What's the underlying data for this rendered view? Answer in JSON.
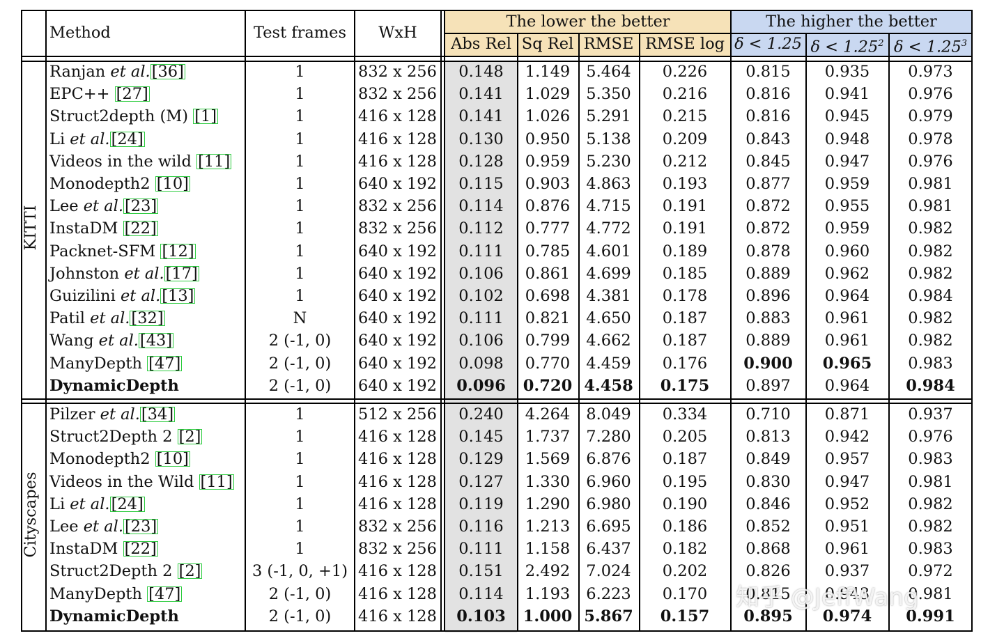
{
  "header": {
    "method": "Method",
    "test_frames": "Test frames",
    "wxh": "WxH",
    "group_lower": "The lower the better",
    "group_higher": "The higher the better",
    "abs_rel": "Abs Rel",
    "sq_rel": "Sq Rel",
    "rmse": "RMSE",
    "rmse_log": "RMSE log",
    "d1": "δ < 1.25",
    "d2": "δ < 1.25",
    "d3": "δ < 1.25",
    "d2_exp": "2",
    "d3_exp": "3"
  },
  "colors": {
    "lower_bg": "#f6e2b8",
    "higher_bg": "#c9d8f1",
    "absrel_bg": "#e2e2e2",
    "cite_border": "#2ecc40"
  },
  "sections": [
    {
      "name": "KITTI",
      "rows": [
        {
          "m": "Ranjan",
          "it": "et al.",
          "cite": "[36]",
          "f": "1",
          "wh": "832 x 256",
          "v": [
            "0.148",
            "1.149",
            "5.464",
            "0.226",
            "0.815",
            "0.935",
            "0.973"
          ]
        },
        {
          "m": "EPC++",
          "it": "",
          "cite": "[27]",
          "f": "1",
          "wh": "832 x 256",
          "v": [
            "0.141",
            "1.029",
            "5.350",
            "0.216",
            "0.816",
            "0.941",
            "0.976"
          ]
        },
        {
          "m": "Struct2depth (M)",
          "it": "",
          "cite": "[1]",
          "f": "1",
          "wh": "416 x 128",
          "v": [
            "0.141",
            "1.026",
            "5.291",
            "0.215",
            "0.816",
            "0.945",
            "0.979"
          ]
        },
        {
          "m": "Li",
          "it": "et al.",
          "cite": "[24]",
          "f": "1",
          "wh": "416 x 128",
          "v": [
            "0.130",
            "0.950",
            "5.138",
            "0.209",
            "0.843",
            "0.948",
            "0.978"
          ]
        },
        {
          "m": "Videos in the wild",
          "it": "",
          "cite": "[11]",
          "f": "1",
          "wh": "416 x 128",
          "v": [
            "0.128",
            "0.959",
            "5.230",
            "0.212",
            "0.845",
            "0.947",
            "0.976"
          ]
        },
        {
          "m": "Monodepth2",
          "it": "",
          "cite": "[10]",
          "f": "1",
          "wh": "640 x 192",
          "v": [
            "0.115",
            "0.903",
            "4.863",
            "0.193",
            "0.877",
            "0.959",
            "0.981"
          ]
        },
        {
          "m": "Lee",
          "it": "et al.",
          "cite": "[23]",
          "f": "1",
          "wh": "832 x 256",
          "v": [
            "0.114",
            "0.876",
            "4.715",
            "0.191",
            "0.872",
            "0.955",
            "0.981"
          ]
        },
        {
          "m": "InstaDM",
          "it": "",
          "cite": "[22]",
          "f": "1",
          "wh": "832 x 256",
          "v": [
            "0.112",
            "0.777",
            "4.772",
            "0.191",
            "0.872",
            "0.959",
            "0.982"
          ]
        },
        {
          "m": "Packnet-SFM",
          "it": "",
          "cite": "[12]",
          "f": "1",
          "wh": "640 x 192",
          "v": [
            "0.111",
            "0.785",
            "4.601",
            "0.189",
            "0.878",
            "0.960",
            "0.982"
          ]
        },
        {
          "m": "Johnston",
          "it": "et al.",
          "cite": "[17]",
          "f": "1",
          "wh": "640 x 192",
          "v": [
            "0.106",
            "0.861",
            "4.699",
            "0.185",
            "0.889",
            "0.962",
            "0.982"
          ]
        },
        {
          "m": "Guizilini",
          "it": "et al.",
          "cite": "[13]",
          "f": "1",
          "wh": "640 x 192",
          "v": [
            "0.102",
            "0.698",
            "4.381",
            "0.178",
            "0.896",
            "0.964",
            "0.984"
          ]
        },
        {
          "m": "Patil",
          "it": "et al.",
          "cite": "[32]",
          "f": "N",
          "wh": "640 x 192",
          "v": [
            "0.111",
            "0.821",
            "4.650",
            "0.187",
            "0.883",
            "0.961",
            "0.982"
          ]
        },
        {
          "m": "Wang",
          "it": "et al.",
          "cite": "[43]",
          "f": "2 (-1, 0)",
          "wh": "640 x 192",
          "v": [
            "0.106",
            "0.799",
            "4.662",
            "0.187",
            "0.889",
            "0.961",
            "0.982"
          ]
        },
        {
          "m": "ManyDepth",
          "it": "",
          "cite": "[47]",
          "f": "2 (-1, 0)",
          "wh": "640 x 192",
          "v": [
            "0.098",
            "0.770",
            "4.459",
            "0.176",
            "0.900",
            "0.965",
            "0.983"
          ],
          "bold": [
            4,
            5
          ]
        },
        {
          "m": "DynamicDepth",
          "it": "",
          "cite": "",
          "f": "2 (-1, 0)",
          "wh": "640 x 192",
          "v": [
            "0.096",
            "0.720",
            "4.458",
            "0.175",
            "0.897",
            "0.964",
            "0.984"
          ],
          "bold": [
            0,
            1,
            2,
            3,
            6
          ],
          "mbold": true
        }
      ]
    },
    {
      "name": "Cityscapes",
      "rows": [
        {
          "m": "Pilzer",
          "it": "et al.",
          "cite": "[34]",
          "f": "1",
          "wh": "512 x 256",
          "v": [
            "0.240",
            "4.264",
            "8.049",
            "0.334",
            "0.710",
            "0.871",
            "0.937"
          ]
        },
        {
          "m": "Struct2Depth 2",
          "it": "",
          "cite": "[2]",
          "f": "1",
          "wh": "416 x 128",
          "v": [
            "0.145",
            "1.737",
            "7.280",
            "0.205",
            "0.813",
            "0.942",
            "0.976"
          ]
        },
        {
          "m": "Monodepth2",
          "it": "",
          "cite": "[10]",
          "f": "1",
          "wh": "416 x 128",
          "v": [
            "0.129",
            "1.569",
            "6.876",
            "0.187",
            "0.849",
            "0.957",
            "0.983"
          ]
        },
        {
          "m": "Videos in the Wild",
          "it": "",
          "cite": "[11]",
          "f": "1",
          "wh": "416 x 128",
          "v": [
            "0.127",
            "1.330",
            "6.960",
            "0.195",
            "0.830",
            "0.947",
            "0.981"
          ]
        },
        {
          "m": "Li",
          "it": "et al.",
          "cite": "[24]",
          "f": "1",
          "wh": "416 x 128",
          "v": [
            "0.119",
            "1.290",
            "6.980",
            "0.190",
            "0.846",
            "0.952",
            "0.982"
          ]
        },
        {
          "m": "Lee",
          "it": "et al.",
          "cite": "[23]",
          "f": "1",
          "wh": "832 x 256",
          "v": [
            "0.116",
            "1.213",
            "6.695",
            "0.186",
            "0.852",
            "0.951",
            "0.982"
          ]
        },
        {
          "m": "InstaDM",
          "it": "",
          "cite": "[22]",
          "f": "1",
          "wh": "832 x 256",
          "v": [
            "0.111",
            "1.158",
            "6.437",
            "0.182",
            "0.868",
            "0.961",
            "0.983"
          ]
        },
        {
          "m": "Struct2Depth 2",
          "it": "",
          "cite": "[2]",
          "f": "3 (-1, 0, +1)",
          "wh": "416 x 128",
          "v": [
            "0.151",
            "2.492",
            "7.024",
            "0.202",
            "0.826",
            "0.937",
            "0.972"
          ]
        },
        {
          "m": "ManyDepth",
          "it": "",
          "cite": "[47]",
          "f": "2 (-1, 0)",
          "wh": "416 x 128",
          "v": [
            "0.114",
            "1.193",
            "6.223",
            "0.170",
            "0.815",
            "0.943",
            "0.981"
          ]
        },
        {
          "m": "DynamicDepth",
          "it": "",
          "cite": "",
          "f": "2 (-1, 0)",
          "wh": "416 x 128",
          "v": [
            "0.103",
            "1.000",
            "5.867",
            "0.157",
            "0.895",
            "0.974",
            "0.991"
          ],
          "bold": [
            0,
            1,
            2,
            3,
            4,
            5,
            6
          ],
          "mbold": true
        }
      ]
    }
  ],
  "watermark": "知乎 @JeffWang"
}
